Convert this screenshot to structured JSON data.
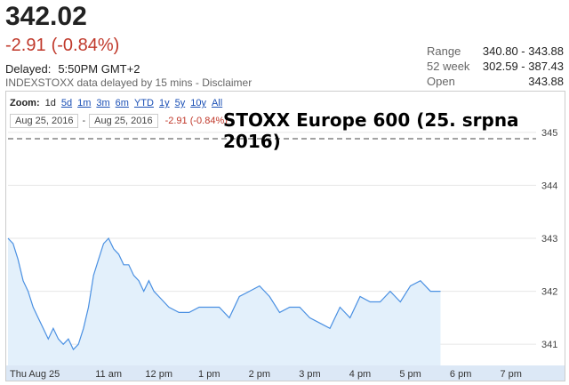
{
  "quote": {
    "price": "342.02",
    "change": "-2.91",
    "change_pct": "(-0.84%)",
    "delayed_label": "Delayed:",
    "delayed_time": "5:50PM GMT+2",
    "disclaimer": "INDEXSTOXX data delayed by 15 mins - Disclaimer"
  },
  "stats": [
    {
      "label": "Range",
      "value": "340.80 - 343.88"
    },
    {
      "label": "52 week",
      "value": "302.59 - 387.43"
    },
    {
      "label": "Open",
      "value": "343.88"
    }
  ],
  "zoom": {
    "label": "Zoom:",
    "options": [
      "1d",
      "5d",
      "1m",
      "3m",
      "6m",
      "YTD",
      "1y",
      "5y",
      "10y",
      "All"
    ],
    "active": "1d"
  },
  "date_range": {
    "from": "Aug 25, 2016",
    "separator": "-",
    "to": "Aug 25, 2016",
    "change": "-2.91 (-0.84%)"
  },
  "overlay_title": "STOXX Europe 600 (25. srpna 2016)",
  "colors": {
    "line": "#4a90e2",
    "fill": "#e3f0fb",
    "negative": "#c0392b",
    "link": "#1a4fb5"
  },
  "chart_data": {
    "type": "area",
    "x_tick_labels": [
      "Thu Aug 25",
      "11 am",
      "12 pm",
      "1 pm",
      "2 pm",
      "3 pm",
      "4 pm",
      "5 pm",
      "6 pm",
      "7 pm"
    ],
    "y_tick_labels": [
      "341",
      "342",
      "343",
      "344",
      "345"
    ],
    "ylim": [
      340.6,
      345.4
    ],
    "xlim": [
      9.0,
      19.5
    ],
    "reference_line": 344.88,
    "x": [
      9.0,
      9.1,
      9.2,
      9.3,
      9.4,
      9.5,
      9.6,
      9.7,
      9.8,
      9.9,
      10.0,
      10.1,
      10.2,
      10.3,
      10.4,
      10.5,
      10.6,
      10.7,
      10.8,
      10.9,
      11.0,
      11.1,
      11.2,
      11.3,
      11.4,
      11.5,
      11.6,
      11.7,
      11.8,
      11.9,
      12.0,
      12.2,
      12.4,
      12.6,
      12.8,
      13.0,
      13.2,
      13.4,
      13.6,
      13.8,
      14.0,
      14.2,
      14.4,
      14.6,
      14.8,
      15.0,
      15.2,
      15.4,
      15.6,
      15.8,
      16.0,
      16.2,
      16.4,
      16.6,
      16.8,
      17.0,
      17.2,
      17.4,
      17.6
    ],
    "y": [
      343.0,
      342.9,
      342.6,
      342.2,
      342.0,
      341.7,
      341.5,
      341.3,
      341.1,
      341.3,
      341.1,
      341.0,
      341.1,
      340.9,
      341.0,
      341.3,
      341.7,
      342.3,
      342.6,
      342.9,
      343.0,
      342.8,
      342.7,
      342.5,
      342.5,
      342.3,
      342.2,
      342.0,
      342.2,
      342.0,
      341.9,
      341.7,
      341.6,
      341.6,
      341.7,
      341.7,
      341.7,
      341.5,
      341.9,
      342.0,
      342.1,
      341.9,
      341.6,
      341.7,
      341.7,
      341.5,
      341.4,
      341.3,
      341.7,
      341.5,
      341.9,
      341.8,
      341.8,
      342.0,
      341.8,
      342.1,
      342.2,
      342.0,
      342.0
    ]
  }
}
